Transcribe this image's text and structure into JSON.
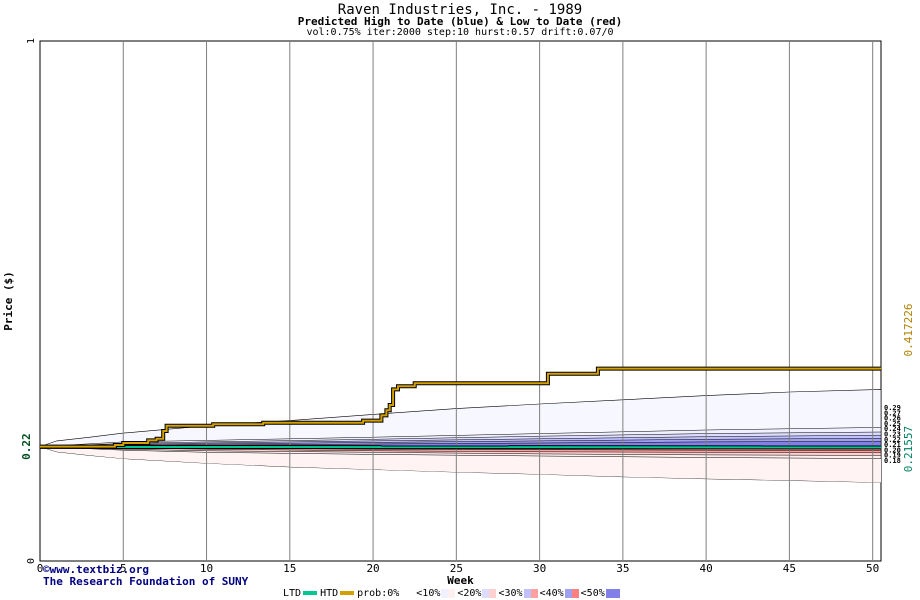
{
  "header": {
    "title": "Raven Industries, Inc. - 1989",
    "subtitle": "Predicted High to Date (blue) &  Low to Date (red)",
    "params": "vol:0.75% iter:2000 step:10 hurst:0.57 drift:0.07/0"
  },
  "credits": {
    "line1": "©www.textbiz.org",
    "line2": "The Research Foundation of SUNY"
  },
  "legend": {
    "ltd": "LTD",
    "htd": "HTD",
    "prob": "prob:0%",
    "bins": [
      "<10%",
      "<20%",
      "<30%",
      "<40%",
      "<50%"
    ]
  },
  "colors": {
    "plot_bg": "#ffffff",
    "grid": "#808080",
    "axis_text": "#000000",
    "high_line": "#d4a000",
    "low_line": "#00c890",
    "blue_band_1": "#f0f0ff",
    "blue_band_2": "#dcdcff",
    "blue_band_3": "#c0c0ff",
    "blue_band_4": "#a0a0f0",
    "blue_band_5": "#8080e8",
    "red_band_1": "#fff0f0",
    "red_band_2": "#ffd0d0",
    "red_band_3": "#ffa0a0",
    "red_band_4": "#ff8080",
    "left_label": "#005020",
    "right_label_high": "#b08000",
    "right_label_low": "#008060"
  },
  "chart_data": {
    "type": "area",
    "title": "Raven Industries, Inc. - 1989",
    "xlabel": "Week",
    "ylabel": "Price ($)",
    "xlim": [
      0,
      50.5
    ],
    "ylim": [
      0,
      1
    ],
    "x_ticks": [
      0,
      5,
      10,
      15,
      20,
      25,
      30,
      35,
      40,
      45,
      50
    ],
    "y_ticks": [
      0,
      1
    ],
    "grid": true,
    "start_price": 0.22,
    "start_label": "0.22",
    "right_labels": {
      "high": "0.417226",
      "low": "0.21557"
    },
    "end_labels": [
      "0.29",
      "0.27",
      "0.26",
      "0.25",
      "0.24",
      "0.23",
      "0.22",
      "0.21",
      "0.20",
      "0.19",
      "0.18"
    ],
    "high_to_date": {
      "name": "HTD",
      "x": [
        0,
        4,
        4.5,
        5,
        6,
        6.5,
        7,
        7.4,
        7.6,
        10,
        10.4,
        13,
        13.4,
        19,
        19.4,
        20,
        20.5,
        20.8,
        21,
        21.2,
        21.5,
        22.5,
        30,
        30.5,
        33,
        33.5,
        50.5
      ],
      "values": [
        0.22,
        0.22,
        0.223,
        0.227,
        0.227,
        0.232,
        0.235,
        0.25,
        0.26,
        0.26,
        0.263,
        0.263,
        0.266,
        0.266,
        0.27,
        0.27,
        0.28,
        0.29,
        0.3,
        0.33,
        0.336,
        0.342,
        0.342,
        0.36,
        0.36,
        0.37,
        0.37
      ]
    },
    "low_to_date": {
      "name": "LTD",
      "x": [
        0,
        50.5
      ],
      "values": [
        0.2195,
        0.2185
      ]
    },
    "envelope_upper": {
      "x": [
        0,
        1,
        3,
        5,
        10,
        15,
        20,
        25,
        30,
        35,
        40,
        45,
        50.5
      ],
      "values": [
        0.22,
        0.231,
        0.238,
        0.246,
        0.26,
        0.27,
        0.282,
        0.293,
        0.302,
        0.31,
        0.318,
        0.325,
        0.33
      ]
    },
    "envelope_lower": {
      "x": [
        0,
        1,
        3,
        5,
        10,
        15,
        20,
        25,
        30,
        35,
        40,
        45,
        50.5
      ],
      "values": [
        0.22,
        0.21,
        0.203,
        0.197,
        0.188,
        0.181,
        0.176,
        0.171,
        0.167,
        0.162,
        0.158,
        0.155,
        0.151
      ]
    },
    "bands": [
      {
        "name": "<10%",
        "side": "high",
        "x": [
          0,
          5,
          10,
          20,
          30,
          40,
          50.5
        ],
        "values": [
          0.22,
          0.229,
          0.232,
          0.238,
          0.245,
          0.252,
          0.257
        ]
      },
      {
        "name": "<20%",
        "side": "high",
        "x": [
          0,
          5,
          10,
          20,
          30,
          40,
          50.5
        ],
        "values": [
          0.22,
          0.226,
          0.229,
          0.234,
          0.24,
          0.245,
          0.248
        ]
      },
      {
        "name": "<30%",
        "side": "high",
        "x": [
          0,
          5,
          10,
          20,
          30,
          40,
          50.5
        ],
        "values": [
          0.22,
          0.224,
          0.227,
          0.231,
          0.235,
          0.239,
          0.242
        ]
      },
      {
        "name": "<40%",
        "side": "high",
        "x": [
          0,
          5,
          10,
          20,
          30,
          40,
          50.5
        ],
        "values": [
          0.22,
          0.223,
          0.225,
          0.228,
          0.231,
          0.234,
          0.236
        ]
      },
      {
        "name": "<50%",
        "side": "high",
        "x": [
          0,
          5,
          10,
          20,
          30,
          40,
          50.5
        ],
        "values": [
          0.22,
          0.222,
          0.223,
          0.225,
          0.227,
          0.229,
          0.23
        ]
      },
      {
        "name": "<10%",
        "side": "low",
        "x": [
          0,
          5,
          10,
          20,
          30,
          40,
          50.5
        ],
        "values": [
          0.22,
          0.213,
          0.209,
          0.205,
          0.202,
          0.199,
          0.197
        ]
      },
      {
        "name": "<20%",
        "side": "low",
        "x": [
          0,
          5,
          10,
          20,
          30,
          40,
          50.5
        ],
        "values": [
          0.22,
          0.215,
          0.212,
          0.209,
          0.206,
          0.204,
          0.203
        ]
      },
      {
        "name": "<30%",
        "side": "low",
        "x": [
          0,
          5,
          10,
          20,
          30,
          40,
          50.5
        ],
        "values": [
          0.22,
          0.217,
          0.215,
          0.212,
          0.21,
          0.209,
          0.208
        ]
      },
      {
        "name": "<40%",
        "side": "low",
        "x": [
          0,
          5,
          10,
          20,
          30,
          40,
          50.5
        ],
        "values": [
          0.22,
          0.218,
          0.217,
          0.215,
          0.214,
          0.213,
          0.212
        ]
      }
    ]
  }
}
